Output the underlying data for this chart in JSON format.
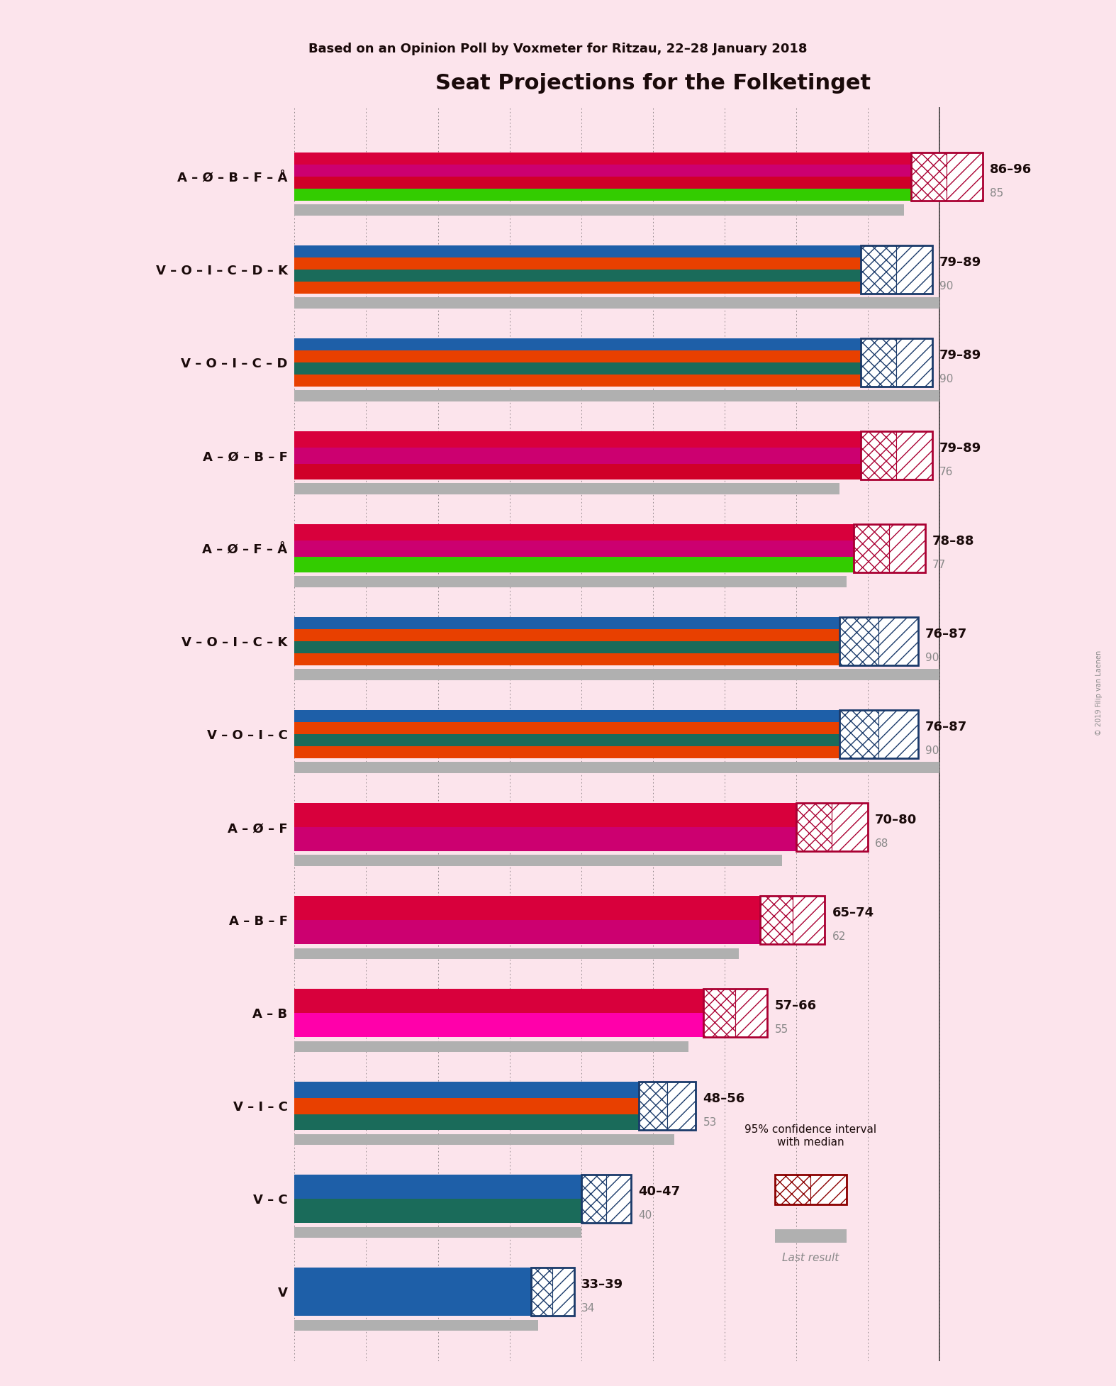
{
  "title": "Seat Projections for the Folketinget",
  "subtitle": "Based on an Opinion Poll by Voxmeter for Ritzau, 22–28 January 2018",
  "background_color": "#fce4ec",
  "coalitions": [
    {
      "label": "A – Ø – B – F – Å",
      "range_lo": 86,
      "range_hi": 96,
      "median": 91,
      "last_result": 85,
      "stripes": [
        "#D8003C",
        "#CC0070",
        "#D00028",
        "#33CC00"
      ],
      "type": "left"
    },
    {
      "label": "V – O – I – C – D – K",
      "range_lo": 79,
      "range_hi": 89,
      "median": 84,
      "last_result": 90,
      "stripes": [
        "#1E5FA8",
        "#E84000",
        "#1A6B5A",
        "#E84000"
      ],
      "type": "right"
    },
    {
      "label": "V – O – I – C – D",
      "range_lo": 79,
      "range_hi": 89,
      "median": 84,
      "last_result": 90,
      "stripes": [
        "#1E5FA8",
        "#E84000",
        "#1A6B5A",
        "#E84000"
      ],
      "type": "right"
    },
    {
      "label": "A – Ø – B – F",
      "range_lo": 79,
      "range_hi": 89,
      "median": 84,
      "last_result": 76,
      "stripes": [
        "#D8003C",
        "#CC0070",
        "#D00028"
      ],
      "type": "left"
    },
    {
      "label": "A – Ø – F – Å",
      "range_lo": 78,
      "range_hi": 88,
      "median": 83,
      "last_result": 77,
      "stripes": [
        "#D8003C",
        "#CC0070",
        "#33CC00"
      ],
      "type": "left"
    },
    {
      "label": "V – O – I – C – K",
      "range_lo": 76,
      "range_hi": 87,
      "median": 81,
      "last_result": 90,
      "stripes": [
        "#1E5FA8",
        "#E84000",
        "#1A6B5A",
        "#E84000"
      ],
      "type": "right"
    },
    {
      "label": "V – O – I – C",
      "range_lo": 76,
      "range_hi": 87,
      "median": 81,
      "last_result": 90,
      "stripes": [
        "#1E5FA8",
        "#E84000",
        "#1A6B5A",
        "#E84000"
      ],
      "type": "right"
    },
    {
      "label": "A – Ø – F",
      "range_lo": 70,
      "range_hi": 80,
      "median": 75,
      "last_result": 68,
      "stripes": [
        "#D8003C",
        "#CC0070"
      ],
      "type": "left"
    },
    {
      "label": "A – B – F",
      "range_lo": 65,
      "range_hi": 74,
      "median": 69,
      "last_result": 62,
      "stripes": [
        "#D8003C",
        "#CC0070"
      ],
      "type": "left"
    },
    {
      "label": "A – B",
      "range_lo": 57,
      "range_hi": 66,
      "median": 61,
      "last_result": 55,
      "stripes": [
        "#D8003C",
        "#FF00AA"
      ],
      "type": "left"
    },
    {
      "label": "V – I – C",
      "range_lo": 48,
      "range_hi": 56,
      "median": 52,
      "last_result": 53,
      "stripes": [
        "#1E5FA8",
        "#E84000",
        "#1A6B5A"
      ],
      "type": "right"
    },
    {
      "label": "V – C",
      "range_lo": 40,
      "range_hi": 47,
      "median": 43,
      "last_result": 40,
      "stripes": [
        "#1E5FA8",
        "#1A6B5A"
      ],
      "type": "right"
    },
    {
      "label": "V",
      "range_lo": 33,
      "range_hi": 39,
      "median": 36,
      "last_result": 34,
      "stripes": [
        "#1E5FA8"
      ],
      "type": "right"
    }
  ],
  "majority_line": 90,
  "left_ci_color": "#AA0033",
  "right_ci_color": "#1A3A6A",
  "gray_color": "#B0B0B0",
  "copyright": "© 2019 Filip van Laenen"
}
